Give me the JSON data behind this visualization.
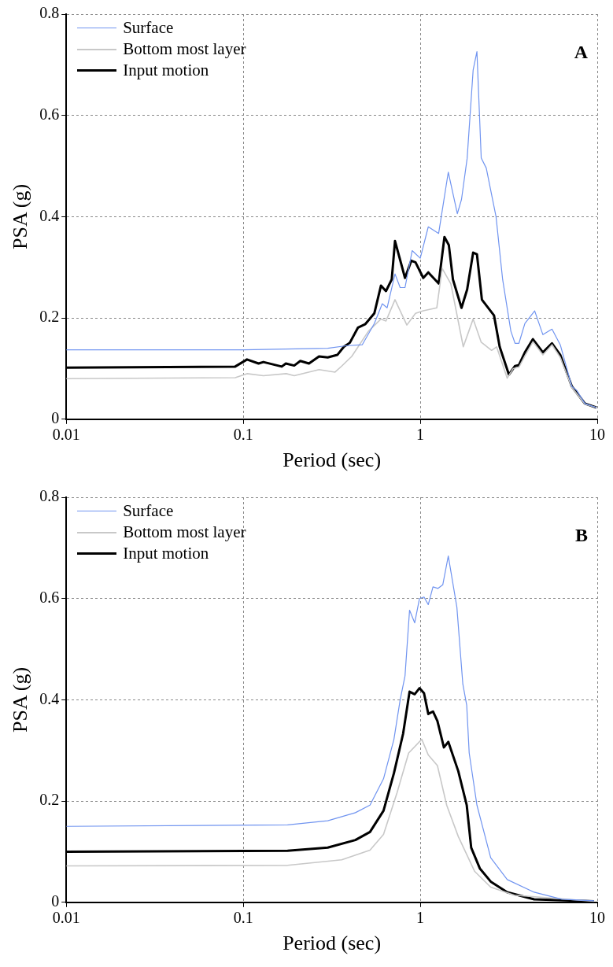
{
  "chart_data": [
    {
      "type": "line",
      "xlabel": "Period (sec)",
      "ylabel": "PSA (g)",
      "annotations": [
        "A"
      ],
      "log": "x",
      "grid": true,
      "legend": "top left",
      "xlim": [
        0.01,
        10
      ],
      "xticks": [
        0.01,
        0.1,
        1,
        10
      ],
      "ylim": [
        0,
        0.8
      ],
      "yticks": [
        0,
        0.2,
        0.4,
        0.6,
        0.8
      ],
      "series": [
        {
          "name": "Surface",
          "color": "#7094f0",
          "x": [
            0.01,
            0.1,
            0.3,
            0.38,
            0.47,
            0.55,
            0.61,
            0.65,
            0.72,
            0.77,
            0.82,
            0.9,
            1,
            1.11,
            1.27,
            1.44,
            1.62,
            1.71,
            1.84,
            1.99,
            2.09,
            2.21,
            2.36,
            2.68,
            2.92,
            3.25,
            3.43,
            3.61,
            3.9,
            4.43,
            4.93,
            5.55,
            6.18,
            7.18,
            7.66,
            8.51,
            9.9
          ],
          "values": [
            0.137,
            0.137,
            0.14,
            0.145,
            0.147,
            0.189,
            0.228,
            0.22,
            0.287,
            0.26,
            0.26,
            0.333,
            0.318,
            0.38,
            0.367,
            0.488,
            0.406,
            0.434,
            0.515,
            0.69,
            0.726,
            0.516,
            0.496,
            0.4,
            0.276,
            0.174,
            0.15,
            0.15,
            0.189,
            0.214,
            0.167,
            0.178,
            0.147,
            0.065,
            0.057,
            0.031,
            0.023
          ]
        },
        {
          "name": "Bottom most layer",
          "color": "#c8c8c8",
          "x": [
            0.01,
            0.09,
            0.105,
            0.13,
            0.175,
            0.194,
            0.268,
            0.33,
            0.36,
            0.41,
            0.51,
            0.6,
            0.64,
            0.72,
            0.84,
            0.94,
            1.04,
            1.24,
            1.33,
            1.49,
            1.75,
            1.99,
            2.21,
            2.53,
            2.7,
            3.1,
            3.35,
            3.61,
            3.9,
            4.33,
            4.93,
            5.55,
            6.18,
            7.18,
            8.51,
            9.9
          ],
          "values": [
            0.08,
            0.082,
            0.09,
            0.086,
            0.09,
            0.086,
            0.098,
            0.093,
            0.105,
            0.124,
            0.174,
            0.198,
            0.194,
            0.236,
            0.186,
            0.209,
            0.214,
            0.22,
            0.298,
            0.267,
            0.143,
            0.198,
            0.152,
            0.136,
            0.143,
            0.081,
            0.1,
            0.103,
            0.125,
            0.153,
            0.127,
            0.147,
            0.122,
            0.063,
            0.03,
            0.023
          ]
        },
        {
          "name": "Input motion",
          "color": "#000000",
          "x": [
            0.01,
            0.09,
            0.105,
            0.122,
            0.13,
            0.165,
            0.174,
            0.194,
            0.21,
            0.235,
            0.268,
            0.3,
            0.34,
            0.37,
            0.4,
            0.445,
            0.49,
            0.55,
            0.6,
            0.64,
            0.69,
            0.72,
            0.82,
            0.89,
            0.94,
            1.04,
            1.11,
            1.27,
            1.37,
            1.45,
            1.53,
            1.71,
            1.84,
            1.99,
            2.09,
            2.23,
            2.61,
            2.81,
            3.17,
            3.43,
            3.61,
            3.9,
            4.33,
            4.93,
            5.55,
            6.18,
            7.18,
            8.51,
            9.9
          ],
          "values": [
            0.102,
            0.104,
            0.118,
            0.11,
            0.113,
            0.104,
            0.11,
            0.106,
            0.115,
            0.11,
            0.124,
            0.122,
            0.127,
            0.143,
            0.151,
            0.181,
            0.188,
            0.209,
            0.264,
            0.253,
            0.276,
            0.352,
            0.279,
            0.313,
            0.31,
            0.279,
            0.29,
            0.268,
            0.36,
            0.344,
            0.276,
            0.22,
            0.256,
            0.329,
            0.326,
            0.236,
            0.205,
            0.143,
            0.088,
            0.105,
            0.107,
            0.132,
            0.158,
            0.132,
            0.15,
            0.127,
            0.065,
            0.031,
            0.023
          ]
        }
      ]
    },
    {
      "type": "line",
      "xlabel": "Period (sec)",
      "ylabel": "PSA (g)",
      "annotations": [
        "B"
      ],
      "log": "x",
      "grid": true,
      "legend": "top left",
      "xlim": [
        0.01,
        10
      ],
      "xticks": [
        0.01,
        0.1,
        1,
        10
      ],
      "ylim": [
        0,
        0.8
      ],
      "yticks": [
        0,
        0.2,
        0.4,
        0.6,
        0.8
      ],
      "series": [
        {
          "name": "Surface",
          "color": "#7094f0",
          "x": [
            0.01,
            0.178,
            0.3,
            0.43,
            0.52,
            0.62,
            0.71,
            0.77,
            0.82,
            0.87,
            0.93,
            0.99,
            1.05,
            1.11,
            1.18,
            1.26,
            1.34,
            1.44,
            1.61,
            1.74,
            1.83,
            1.89,
            2.09,
            2.5,
            3.1,
            4.4,
            6.3,
            9.6
          ],
          "values": [
            0.15,
            0.153,
            0.161,
            0.177,
            0.192,
            0.244,
            0.322,
            0.4,
            0.447,
            0.577,
            0.552,
            0.6,
            0.603,
            0.588,
            0.623,
            0.62,
            0.627,
            0.684,
            0.583,
            0.431,
            0.389,
            0.295,
            0.192,
            0.088,
            0.045,
            0.02,
            0.006,
            0.003
          ]
        },
        {
          "name": "Bottom most layer",
          "color": "#c8c8c8",
          "x": [
            0.01,
            0.178,
            0.36,
            0.52,
            0.62,
            0.74,
            0.86,
            1.02,
            1.11,
            1.25,
            1.41,
            1.64,
            2.03,
            2.5,
            3.4,
            9.6
          ],
          "values": [
            0.072,
            0.073,
            0.084,
            0.103,
            0.134,
            0.217,
            0.295,
            0.322,
            0.291,
            0.27,
            0.192,
            0.13,
            0.061,
            0.03,
            0.014,
            0.002
          ]
        },
        {
          "name": "Input motion",
          "color": "#000000",
          "x": [
            0.01,
            0.178,
            0.3,
            0.43,
            0.52,
            0.62,
            0.71,
            0.8,
            0.87,
            0.93,
            0.99,
            1.05,
            1.11,
            1.18,
            1.25,
            1.36,
            1.44,
            1.64,
            1.83,
            1.94,
            2.17,
            2.5,
            3.1,
            4.4,
            9.6
          ],
          "values": [
            0.1,
            0.102,
            0.108,
            0.123,
            0.139,
            0.181,
            0.255,
            0.333,
            0.416,
            0.411,
            0.423,
            0.413,
            0.372,
            0.377,
            0.358,
            0.306,
            0.317,
            0.259,
            0.192,
            0.108,
            0.067,
            0.041,
            0.02,
            0.006,
            0.002
          ]
        }
      ]
    }
  ]
}
